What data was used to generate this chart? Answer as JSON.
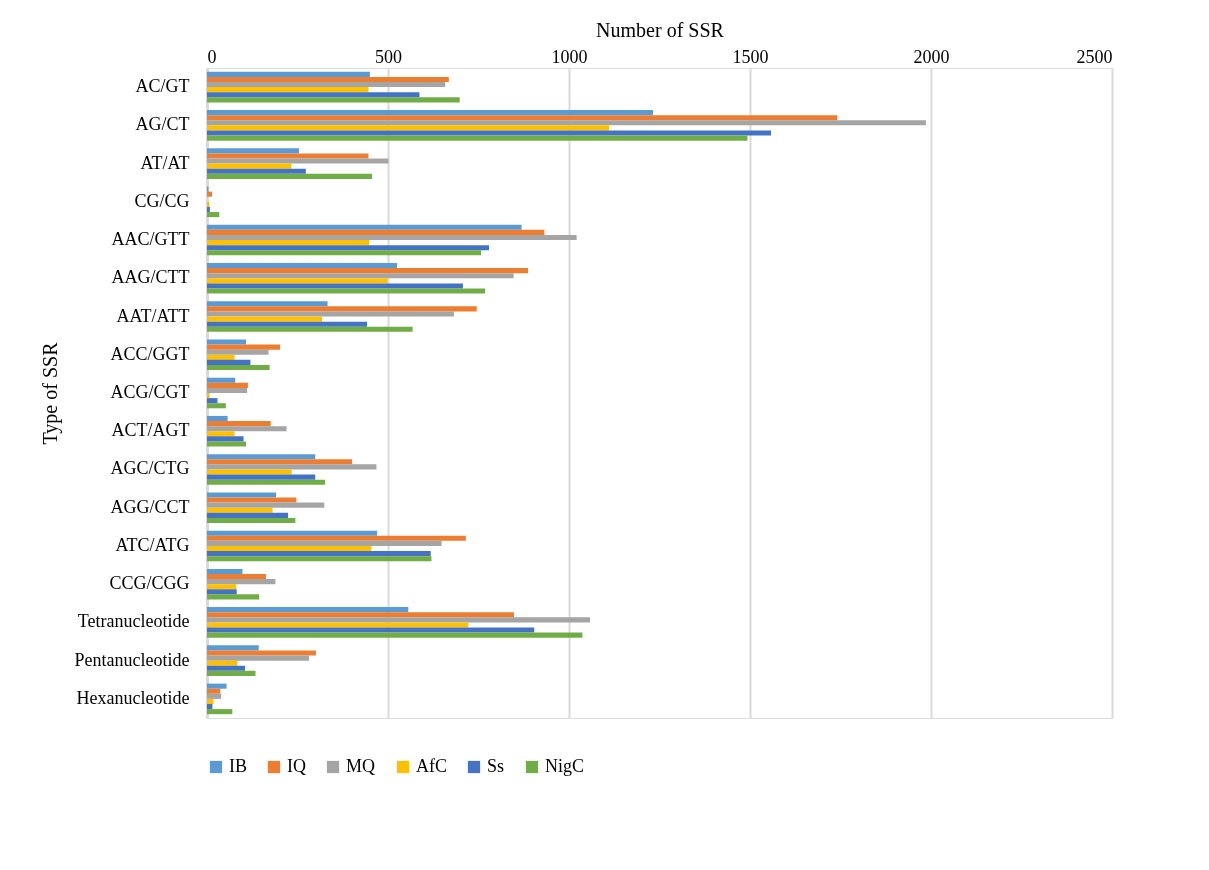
{
  "chart_data": {
    "type": "bar",
    "orientation": "horizontal",
    "xlabel": "Number of SSR",
    "ylabel": "Type of SSR",
    "categories": [
      "AC/GT",
      "AG/CT",
      "AT/AT",
      "CG/CG",
      "AAC/GTT",
      "AAG/CTT",
      "AAT/ATT",
      "ACC/GGT",
      "ACG/CGT",
      "ACT/AGT",
      "AGC/CTG",
      "AGG/CCT",
      "ATC/ATG",
      "CCG/CGG",
      "Tetranucleotide",
      "Pentanucleotide",
      "Hexanucleotide"
    ],
    "series": [
      {
        "name": "IB",
        "color": "#5b9bd5",
        "values": [
          450,
          1232,
          254,
          4,
          869,
          525,
          333,
          108,
          78,
          57,
          299,
          191,
          470,
          98,
          556,
          143,
          54
        ]
      },
      {
        "name": "IQ",
        "color": "#ed7d31",
        "values": [
          668,
          1741,
          446,
          14,
          932,
          887,
          745,
          202,
          113,
          176,
          401,
          247,
          715,
          163,
          848,
          301,
          37
        ]
      },
      {
        "name": "MQ",
        "color": "#a5a5a5",
        "values": [
          658,
          1986,
          501,
          null,
          1021,
          847,
          682,
          170,
          111,
          220,
          468,
          324,
          648,
          189,
          1058,
          282,
          39
        ]
      },
      {
        "name": "AfC",
        "color": "#ffc000",
        "values": [
          446,
          1111,
          233,
          6,
          448,
          499,
          318,
          76,
          7,
          76,
          234,
          181,
          454,
          81,
          722,
          84,
          18
        ]
      },
      {
        "name": "Ss",
        "color": "#4472c4",
        "values": [
          587,
          1558,
          273,
          8,
          779,
          707,
          442,
          120,
          29,
          101,
          299,
          224,
          618,
          82,
          904,
          105,
          15
        ]
      },
      {
        "name": "NigC",
        "color": "#70ad47",
        "values": [
          698,
          1493,
          456,
          34,
          757,
          768,
          568,
          173,
          52,
          108,
          326,
          244,
          620,
          144,
          1037,
          134,
          70
        ]
      }
    ],
    "xlim": [
      0,
      2500
    ],
    "xticks": [
      0,
      500,
      1000,
      1500,
      2000,
      2500
    ],
    "grid": "x",
    "legend": "bottom"
  }
}
